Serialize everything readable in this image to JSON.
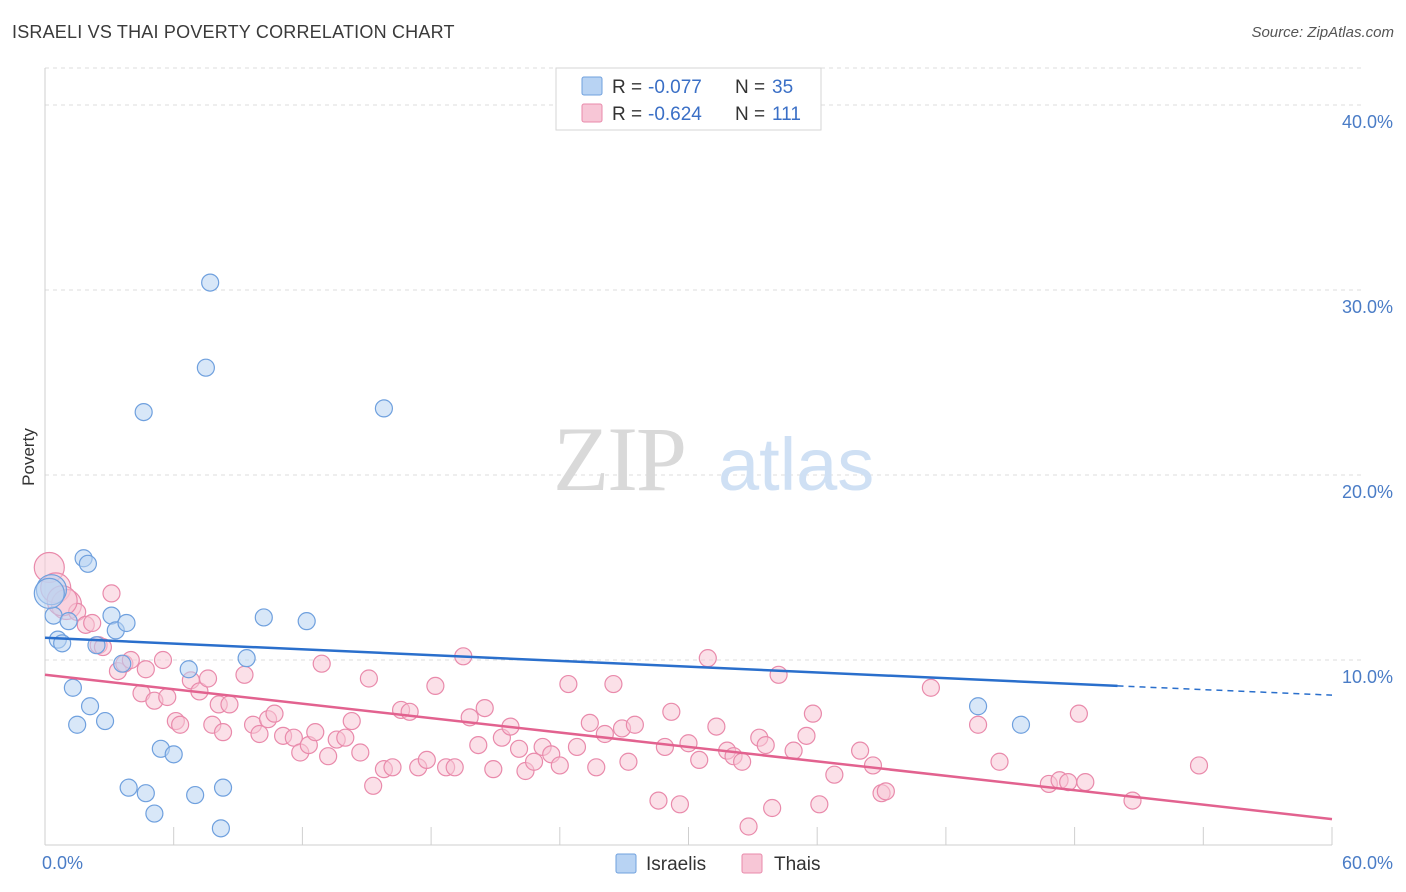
{
  "title": "ISRAELI VS THAI POVERTY CORRELATION CHART",
  "source": "Source: ZipAtlas.com",
  "watermark": {
    "zip": "ZIP",
    "atlas": "atlas"
  },
  "colors": {
    "israelis_fill": "#b8d3f3",
    "israelis_stroke": "#6fa0de",
    "israelis_line": "#2a6fcc",
    "thais_fill": "#f7c6d6",
    "thais_stroke": "#e98aab",
    "thais_line": "#e2628f",
    "tick_label": "#4a7cc6",
    "grid": "#dddddd"
  },
  "legend": {
    "rows": [
      {
        "r_label": "R =",
        "r_value": "-0.077",
        "n_label": "N =",
        "n_value": "35"
      },
      {
        "r_label": "R =",
        "r_value": "-0.624",
        "n_label": "N =",
        "n_value": "111"
      }
    ]
  },
  "bottom_legend": [
    "Israelis",
    "Thais"
  ],
  "chart_data": {
    "type": "scatter",
    "title": "ISRAELI VS THAI POVERTY CORRELATION CHART",
    "xlabel": "",
    "ylabel": "Poverty",
    "xlim": [
      0,
      60
    ],
    "ylim": [
      0,
      42
    ],
    "x_tick_labels": [
      "0.0%",
      "60.0%"
    ],
    "y_ticks": [
      10,
      20,
      30,
      40
    ],
    "y_tick_labels": [
      "10.0%",
      "20.0%",
      "30.0%",
      "40.0%"
    ],
    "grid": true,
    "legend_position": "top-center",
    "series": [
      {
        "name": "Israelis",
        "trend": {
          "x0": 0,
          "y0": 11.2,
          "x1": 50,
          "y1": 8.6,
          "dashed_to_x": 60,
          "dashed_to_y": 8.1
        },
        "points": [
          [
            0.3,
            13.8
          ],
          [
            0.4,
            12.4
          ],
          [
            0.6,
            11.1
          ],
          [
            0.8,
            10.9
          ],
          [
            1.1,
            12.1
          ],
          [
            1.3,
            8.5
          ],
          [
            1.5,
            6.5
          ],
          [
            1.8,
            15.5
          ],
          [
            2.0,
            15.2
          ],
          [
            2.1,
            7.5
          ],
          [
            2.4,
            10.8
          ],
          [
            2.8,
            6.7
          ],
          [
            3.1,
            12.4
          ],
          [
            3.3,
            11.6
          ],
          [
            3.6,
            9.8
          ],
          [
            3.8,
            12.0
          ],
          [
            3.9,
            3.1
          ],
          [
            4.6,
            23.4
          ],
          [
            4.7,
            2.8
          ],
          [
            5.1,
            1.7
          ],
          [
            5.4,
            5.2
          ],
          [
            6.0,
            4.9
          ],
          [
            6.7,
            9.5
          ],
          [
            7.0,
            2.7
          ],
          [
            7.5,
            25.8
          ],
          [
            7.7,
            30.4
          ],
          [
            8.2,
            0.9
          ],
          [
            8.3,
            3.1
          ],
          [
            9.4,
            10.1
          ],
          [
            10.2,
            12.3
          ],
          [
            12.2,
            12.1
          ],
          [
            15.8,
            23.6
          ],
          [
            43.5,
            7.5
          ],
          [
            45.5,
            6.5
          ],
          [
            0.2,
            13.6
          ]
        ]
      },
      {
        "name": "Thais",
        "trend": {
          "x0": 0,
          "y0": 9.2,
          "x1": 60,
          "y1": 1.4
        },
        "points": [
          [
            0.2,
            15.0
          ],
          [
            0.5,
            13.9
          ],
          [
            1.0,
            13.0
          ],
          [
            1.5,
            12.6
          ],
          [
            1.9,
            11.9
          ],
          [
            2.5,
            10.8
          ],
          [
            2.7,
            10.7
          ],
          [
            3.1,
            13.6
          ],
          [
            3.4,
            9.4
          ],
          [
            3.7,
            9.8
          ],
          [
            4.0,
            10.0
          ],
          [
            4.5,
            8.2
          ],
          [
            4.7,
            9.5
          ],
          [
            5.1,
            7.8
          ],
          [
            5.5,
            10.0
          ],
          [
            5.7,
            8.0
          ],
          [
            6.1,
            6.7
          ],
          [
            6.3,
            6.5
          ],
          [
            6.8,
            8.9
          ],
          [
            7.2,
            8.3
          ],
          [
            7.6,
            9.0
          ],
          [
            7.8,
            6.5
          ],
          [
            8.1,
            7.6
          ],
          [
            8.3,
            6.1
          ],
          [
            8.6,
            7.6
          ],
          [
            9.3,
            9.2
          ],
          [
            9.7,
            6.5
          ],
          [
            10.0,
            6.0
          ],
          [
            10.4,
            6.8
          ],
          [
            10.7,
            7.1
          ],
          [
            11.1,
            5.9
          ],
          [
            11.6,
            5.8
          ],
          [
            11.9,
            5.0
          ],
          [
            12.3,
            5.4
          ],
          [
            12.6,
            6.1
          ],
          [
            12.9,
            9.8
          ],
          [
            13.2,
            4.8
          ],
          [
            13.6,
            5.7
          ],
          [
            14.0,
            5.8
          ],
          [
            14.3,
            6.7
          ],
          [
            14.7,
            5.0
          ],
          [
            15.1,
            9.0
          ],
          [
            15.3,
            3.2
          ],
          [
            15.8,
            4.1
          ],
          [
            16.2,
            4.2
          ],
          [
            16.6,
            7.3
          ],
          [
            17.0,
            7.2
          ],
          [
            17.4,
            4.2
          ],
          [
            17.8,
            4.6
          ],
          [
            18.2,
            8.6
          ],
          [
            18.7,
            4.2
          ],
          [
            19.1,
            4.2
          ],
          [
            19.5,
            10.2
          ],
          [
            19.8,
            6.9
          ],
          [
            20.2,
            5.4
          ],
          [
            20.5,
            7.4
          ],
          [
            20.9,
            4.1
          ],
          [
            21.3,
            5.8
          ],
          [
            21.7,
            6.4
          ],
          [
            22.1,
            5.2
          ],
          [
            22.4,
            4.0
          ],
          [
            22.8,
            4.5
          ],
          [
            23.2,
            5.3
          ],
          [
            23.6,
            4.9
          ],
          [
            24.0,
            4.3
          ],
          [
            24.4,
            8.7
          ],
          [
            24.8,
            5.3
          ],
          [
            25.4,
            6.6
          ],
          [
            25.7,
            4.2
          ],
          [
            26.1,
            6.0
          ],
          [
            26.5,
            8.7
          ],
          [
            26.9,
            6.3
          ],
          [
            27.2,
            4.5
          ],
          [
            27.5,
            6.5
          ],
          [
            28.6,
            2.4
          ],
          [
            28.9,
            5.3
          ],
          [
            29.2,
            7.2
          ],
          [
            29.6,
            2.2
          ],
          [
            30.0,
            5.5
          ],
          [
            30.5,
            4.6
          ],
          [
            30.9,
            10.1
          ],
          [
            31.3,
            6.4
          ],
          [
            31.8,
            5.1
          ],
          [
            32.1,
            4.8
          ],
          [
            32.5,
            4.5
          ],
          [
            32.8,
            1.0
          ],
          [
            33.3,
            5.8
          ],
          [
            33.6,
            5.4
          ],
          [
            33.9,
            2.0
          ],
          [
            34.2,
            9.2
          ],
          [
            34.9,
            5.1
          ],
          [
            35.5,
            5.9
          ],
          [
            35.8,
            7.1
          ],
          [
            36.1,
            2.2
          ],
          [
            36.8,
            3.8
          ],
          [
            38.0,
            5.1
          ],
          [
            38.6,
            4.3
          ],
          [
            39.0,
            2.8
          ],
          [
            39.2,
            2.9
          ],
          [
            41.3,
            8.5
          ],
          [
            43.5,
            6.5
          ],
          [
            44.5,
            4.5
          ],
          [
            46.8,
            3.3
          ],
          [
            47.3,
            3.5
          ],
          [
            47.7,
            3.4
          ],
          [
            48.2,
            7.1
          ],
          [
            48.5,
            3.4
          ],
          [
            50.7,
            2.4
          ],
          [
            53.8,
            4.3
          ],
          [
            0.8,
            13.2
          ],
          [
            2.2,
            12.0
          ]
        ]
      }
    ]
  }
}
